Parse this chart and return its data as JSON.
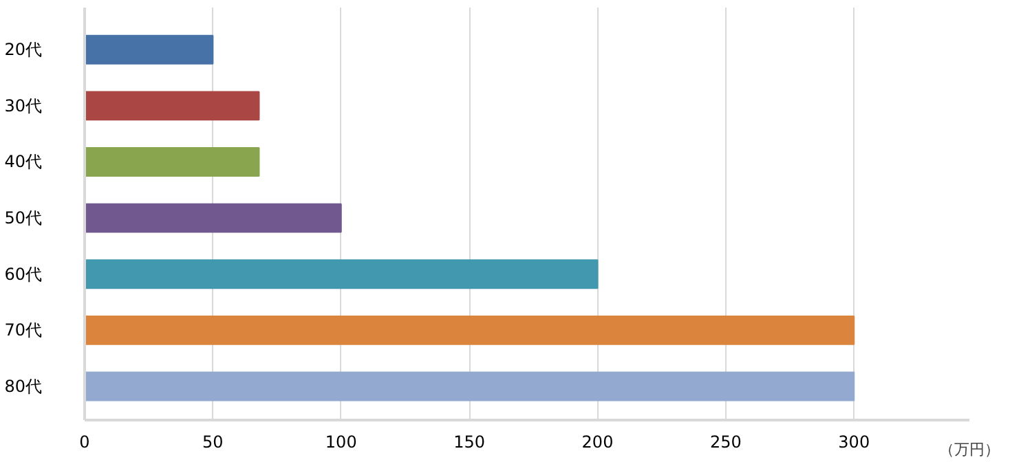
{
  "chart_data": {
    "type": "bar",
    "orientation": "horizontal",
    "xlabel": "（万円）",
    "categories": [
      "20代",
      "30代",
      "40代",
      "50代",
      "60代",
      "70代",
      "80代"
    ],
    "values": [
      50,
      68,
      68,
      100,
      200,
      300,
      300
    ],
    "colors": [
      "#4672a8",
      "#aa4744",
      "#89a54e",
      "#71598f",
      "#4198af",
      "#db843d",
      "#93a9cf"
    ],
    "xlim": [
      0,
      345
    ],
    "xticks": [
      0,
      50,
      100,
      150,
      200,
      250,
      300
    ],
    "grid": "x"
  }
}
